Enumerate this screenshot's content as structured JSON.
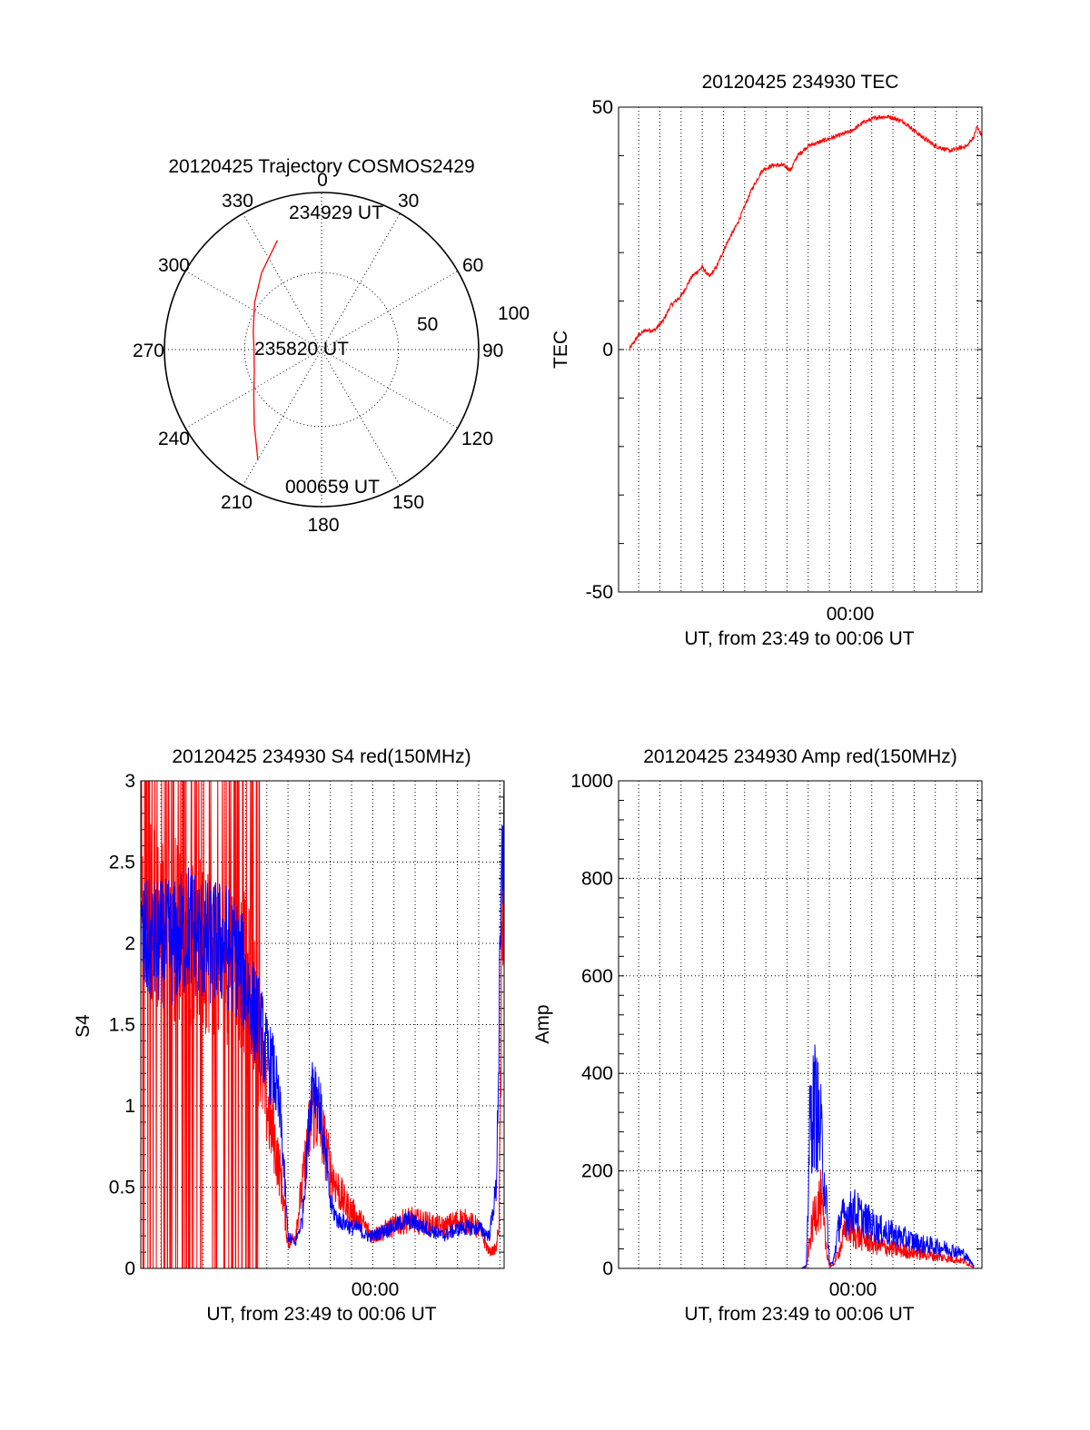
{
  "colors": {
    "red": "#ff0000",
    "blue": "#0000ff",
    "axis": "#000000"
  },
  "chart_data": [
    {
      "id": "trajectory",
      "type": "polar",
      "title": "20120425 Trajectory COSMOS2429",
      "angle_labels": [
        "0",
        "30",
        "60",
        "90",
        "120",
        "150",
        "180",
        "210",
        "240",
        "270",
        "300",
        "330"
      ],
      "radius_labels": [
        "50",
        "100"
      ],
      "r_max": 100,
      "start_label": "234929 UT",
      "mid_label": "235820 UT",
      "end_label": "000659 UT",
      "series": [
        {
          "color": "#ff0000",
          "points": [
            {
              "az": 338,
              "el": 75
            },
            {
              "az": 322,
              "el": 62
            },
            {
              "az": 305,
              "el": 52
            },
            {
              "az": 285,
              "el": 45
            },
            {
              "az": 270,
              "el": 43
            },
            {
              "az": 252,
              "el": 45
            },
            {
              "az": 236,
              "el": 52
            },
            {
              "az": 222,
              "el": 64
            },
            {
              "az": 210,
              "el": 81
            }
          ]
        }
      ]
    },
    {
      "id": "tec",
      "type": "line",
      "title": "20120425 234930 TEC",
      "ylabel": "TEC",
      "xlabel": "UT, from 23:49 to 00:06 UT",
      "xtick_label": "00:00",
      "xlim": [
        -657,
        372
      ],
      "ylim": [
        -50,
        50
      ],
      "yticks": [
        -50,
        0,
        50
      ],
      "grid": true,
      "series": [
        {
          "color": "#ff0000",
          "x": [
            -627,
            -600,
            -580,
            -555,
            -530,
            -510,
            -480,
            -450,
            -420,
            -400,
            -380,
            -350,
            -320,
            -280,
            -250,
            -220,
            -190,
            -170,
            -150,
            -120,
            -80,
            -40,
            0,
            40,
            80,
            110,
            150,
            200,
            240,
            280,
            330,
            350,
            358,
            372
          ],
          "y": [
            0,
            3,
            4,
            4,
            6,
            9,
            11,
            15,
            17,
            15,
            17,
            22,
            26,
            33,
            37,
            38,
            38,
            37,
            40,
            42,
            43,
            44,
            45,
            47,
            48,
            48,
            47,
            44,
            42,
            41,
            42,
            44,
            46,
            44
          ],
          "noise": 0.9
        }
      ]
    },
    {
      "id": "s4",
      "type": "line",
      "title": "20120425 234930 S4 red(150MHz)",
      "ylabel": "S4",
      "xlabel": "UT, from 23:49 to 00:06 UT",
      "xtick_label": "00:00",
      "xlim": [
        -657,
        372
      ],
      "ylim": [
        0,
        3
      ],
      "yticks": [
        0,
        0.5,
        1,
        1.5,
        2,
        2.5,
        3
      ],
      "grid": true,
      "series": [
        {
          "name": "red",
          "color": "#ff0000",
          "x": [
            -657,
            -560,
            -520,
            -470,
            -420,
            -380,
            -340,
            -320,
            -300,
            -280,
            -260,
            -240,
            -220,
            -200,
            -170,
            -150,
            -140,
            -120,
            -100,
            -80,
            -60,
            -40,
            -20,
            0,
            50,
            100,
            150,
            200,
            250,
            300,
            330,
            350,
            358,
            364,
            372
          ],
          "y": [
            2.2,
            2.1,
            2.0,
            2.0,
            1.9,
            1.9,
            1.7,
            1.3,
            1.0,
            0.8,
            0.55,
            0.15,
            0.2,
            0.5,
            1.0,
            0.9,
            0.8,
            0.6,
            0.5,
            0.4,
            0.35,
            0.3,
            0.25,
            0.2,
            0.25,
            0.3,
            0.28,
            0.25,
            0.3,
            0.25,
            0.1,
            0.12,
            0.3,
            1.5,
            3.0
          ],
          "noise": 0.35,
          "spike_until": -320
        },
        {
          "name": "blue",
          "color": "#0000ff",
          "x": [
            -657,
            -560,
            -520,
            -470,
            -420,
            -380,
            -340,
            -320,
            -300,
            -280,
            -260,
            -240,
            -220,
            -200,
            -170,
            -150,
            -140,
            -120,
            -100,
            -80,
            -60,
            -40,
            -20,
            0,
            50,
            100,
            150,
            200,
            250,
            300,
            330,
            350,
            358,
            364,
            372
          ],
          "y": [
            2.0,
            2.0,
            2.1,
            2.0,
            2.0,
            1.9,
            1.6,
            1.5,
            1.3,
            1.2,
            0.9,
            0.2,
            0.15,
            0.3,
            1.2,
            1.0,
            0.8,
            0.4,
            0.3,
            0.28,
            0.25,
            0.25,
            0.2,
            0.2,
            0.25,
            0.3,
            0.25,
            0.2,
            0.25,
            0.25,
            0.2,
            0.5,
            1.5,
            2.2,
            3.0
          ],
          "noise": 0.25
        }
      ]
    },
    {
      "id": "amp",
      "type": "line",
      "title": "20120425 234930 Amp red(150MHz)",
      "ylabel": "Amp",
      "xlabel": "UT, from 23:49 to 00:06 UT",
      "xtick_label": "00:00",
      "xlim": [
        -657,
        372
      ],
      "ylim": [
        0,
        1000
      ],
      "yticks": [
        0,
        200,
        400,
        600,
        800,
        1000
      ],
      "grid": true,
      "series": [
        {
          "name": "red",
          "color": "#ff0000",
          "x": [
            -627,
            -140,
            -125,
            -115,
            -100,
            -85,
            -70,
            -60,
            -50,
            -30,
            -10,
            10,
            40,
            80,
            120,
            160,
            200,
            240,
            280,
            320,
            350
          ],
          "y": [
            0,
            0,
            2,
            60,
            120,
            140,
            50,
            5,
            5,
            40,
            90,
            70,
            60,
            45,
            40,
            35,
            30,
            25,
            20,
            15,
            2
          ],
          "noise": 0.9
        },
        {
          "name": "blue",
          "color": "#0000ff",
          "x": [
            -627,
            -140,
            -125,
            -115,
            -100,
            -85,
            -70,
            -60,
            -50,
            -30,
            -10,
            10,
            40,
            80,
            120,
            160,
            200,
            240,
            280,
            320,
            350
          ],
          "y": [
            0,
            0,
            5,
            300,
            340,
            280,
            150,
            10,
            10,
            100,
            110,
            120,
            100,
            80,
            70,
            60,
            50,
            45,
            40,
            30,
            5
          ],
          "noise": 0.8
        }
      ]
    }
  ]
}
